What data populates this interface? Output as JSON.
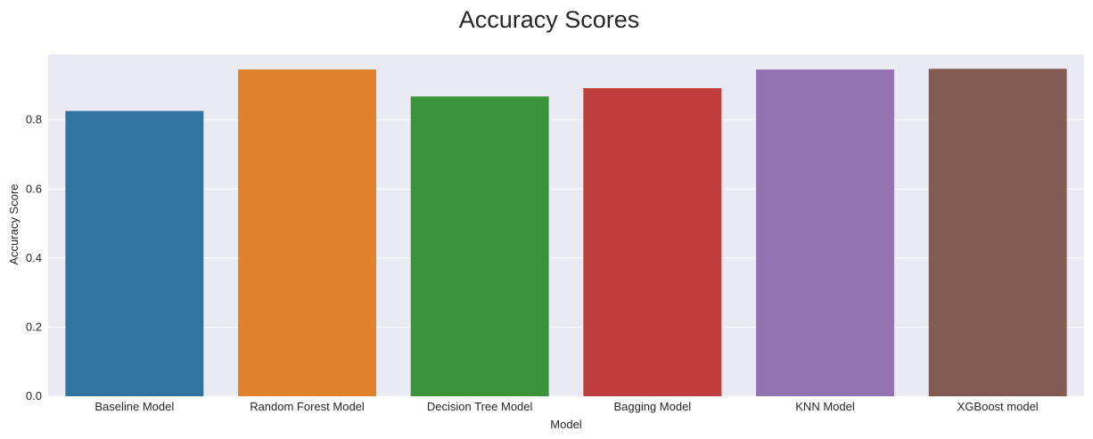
{
  "chart_data": {
    "type": "bar",
    "title": "Accuracy Scores",
    "xlabel": "Model",
    "ylabel": "Accuracy Score",
    "categories": [
      "Baseline Model",
      "Random Forest Model",
      "Decision Tree Model",
      "Bagging Model",
      "KNN Model",
      "XGBoost model"
    ],
    "values": [
      0.826,
      0.946,
      0.868,
      0.892,
      0.946,
      0.948
    ],
    "ylim": [
      0,
      0.99
    ],
    "yticks": [
      0.0,
      0.2,
      0.4,
      0.6,
      0.8
    ],
    "ytick_labels": [
      "0.0",
      "0.2",
      "0.4",
      "0.6",
      "0.8"
    ],
    "colors": [
      "#3274a1",
      "#e1812c",
      "#3a923a",
      "#c03d3e",
      "#9372b2",
      "#845b53"
    ],
    "grid": true,
    "background": "#eaeaf2"
  }
}
